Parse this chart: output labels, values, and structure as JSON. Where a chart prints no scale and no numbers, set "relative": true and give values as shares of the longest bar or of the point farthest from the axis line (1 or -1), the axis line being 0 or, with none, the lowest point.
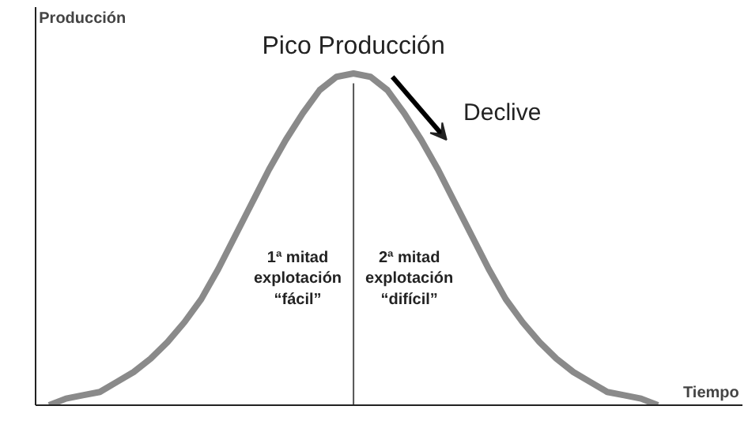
{
  "chart_data": {
    "type": "line",
    "relative": true,
    "xlabel": "Tiempo",
    "ylabel": "Producción",
    "categories": [
      null,
      null,
      null,
      null,
      null,
      null,
      null,
      null,
      null,
      null,
      null,
      null,
      null,
      null,
      null,
      null,
      null,
      null,
      null,
      null,
      null,
      null,
      null,
      null,
      null,
      null,
      null,
      null,
      null,
      null,
      null,
      null,
      null,
      null,
      null,
      null,
      null
    ],
    "series": [
      {
        "color": "#8a8a8a",
        "values": [
          0,
          0.02,
          0.03,
          0.04,
          0.07,
          0.1,
          0.14,
          0.19,
          0.25,
          0.32,
          0.41,
          0.51,
          0.61,
          0.71,
          0.8,
          0.88,
          0.95,
          0.99,
          1,
          0.99,
          0.95,
          0.88,
          0.8,
          0.71,
          0.61,
          0.51,
          0.41,
          0.32,
          0.25,
          0.19,
          0.14,
          0.1,
          0.07,
          0.04,
          0.03,
          0.02,
          0
        ]
      }
    ],
    "annotations": [
      "Pico Producción",
      "Declive",
      "1ª mitad\nexplotación\n“fácil”",
      "2ª mitad\nexplotación\n“difícil”"
    ],
    "marker": "none",
    "line_style": "solid"
  }
}
